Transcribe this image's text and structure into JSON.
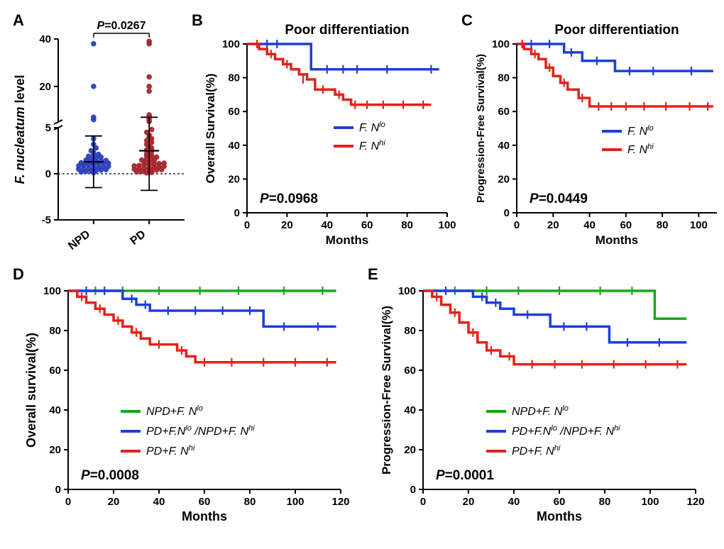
{
  "layout": {
    "row1_height": 360,
    "row2_height": 394
  },
  "colors": {
    "blue": "#1e3fd6",
    "red": "#e2231a",
    "darkred": "#a7252a",
    "darkblue": "#2b3fbb",
    "green": "#1aa61a",
    "black": "#000000",
    "bg": "#ffffff"
  },
  "panelA": {
    "label": "A",
    "ylabel": "F. nucleatum level",
    "pvalue": "P=0.0267",
    "y_ticks": [
      -5,
      0,
      5,
      20,
      40
    ],
    "y_tick_labels": [
      "-5",
      "0",
      "5",
      "20",
      "40"
    ],
    "categories": [
      "NPD",
      "PD"
    ],
    "scatter": {
      "NPD": [
        0.1,
        0.2,
        0.25,
        0.3,
        0.35,
        0.4,
        0.45,
        0.5,
        0.55,
        0.6,
        0.65,
        0.7,
        0.75,
        0.8,
        0.85,
        0.9,
        0.95,
        1.0,
        1.05,
        1.1,
        1.15,
        1.2,
        1.25,
        1.3,
        1.35,
        1.4,
        1.45,
        1.5,
        1.6,
        1.7,
        1.8,
        1.9,
        2.0,
        2.1,
        2.3,
        2.5,
        2.8,
        3.2,
        3.8,
        6.0,
        7.0,
        20,
        38
      ],
      "PD": [
        0.1,
        0.15,
        0.2,
        0.25,
        0.3,
        0.35,
        0.4,
        0.45,
        0.5,
        0.55,
        0.6,
        0.65,
        0.7,
        0.75,
        0.8,
        0.85,
        0.9,
        0.95,
        1.0,
        1.05,
        1.1,
        1.15,
        1.2,
        1.3,
        1.4,
        1.5,
        1.6,
        1.7,
        1.8,
        1.9,
        2.0,
        2.2,
        2.4,
        2.6,
        2.8,
        3.0,
        3.2,
        3.4,
        3.6,
        3.8,
        4.0,
        4.2,
        4.5,
        4.8,
        5.2,
        6.0,
        7.0,
        8.0,
        18,
        20,
        24,
        38,
        39
      ]
    },
    "npd_color": "#2b3fbb",
    "pd_color": "#a7252a",
    "error": {
      "NPD": {
        "mean": 1.3,
        "low": -1.5,
        "high": 4.1
      },
      "PD": {
        "mean": 2.5,
        "low": -1.8,
        "high": 7.0
      }
    }
  },
  "panelB": {
    "label": "B",
    "title": "Poor  differentiation",
    "ylabel": "Overall Survival(%)",
    "xlabel": "Months",
    "pvalue": "P=0.0968",
    "ylim": [
      0,
      100
    ],
    "ytick_step": 20,
    "xlim": [
      0,
      100
    ],
    "xtick_step": 20,
    "legend": [
      {
        "label_prefix": "F. N",
        "label_sup": "lo",
        "color": "#1e3fd6"
      },
      {
        "label_prefix": "F. N",
        "label_sup": "hi",
        "color": "#e2231a"
      }
    ],
    "series": [
      {
        "color": "#1e3fd6",
        "steps": [
          [
            0,
            100
          ],
          [
            30,
            100
          ],
          [
            32,
            85
          ],
          [
            96,
            85
          ]
        ],
        "censors": [
          [
            10,
            100
          ],
          [
            15,
            100
          ],
          [
            40,
            85
          ],
          [
            48,
            85
          ],
          [
            55,
            85
          ],
          [
            70,
            85
          ],
          [
            92,
            85
          ]
        ]
      },
      {
        "color": "#e2231a",
        "steps": [
          [
            0,
            100
          ],
          [
            6,
            97
          ],
          [
            10,
            94
          ],
          [
            14,
            91
          ],
          [
            18,
            88
          ],
          [
            22,
            85
          ],
          [
            26,
            82
          ],
          [
            30,
            79
          ],
          [
            34,
            73
          ],
          [
            40,
            73
          ],
          [
            44,
            70
          ],
          [
            48,
            67
          ],
          [
            52,
            64
          ],
          [
            92,
            64
          ]
        ],
        "censors": [
          [
            5,
            100
          ],
          [
            12,
            94
          ],
          [
            20,
            88
          ],
          [
            28,
            79
          ],
          [
            38,
            73
          ],
          [
            46,
            70
          ],
          [
            54,
            64
          ],
          [
            60,
            64
          ],
          [
            68,
            64
          ],
          [
            78,
            64
          ],
          [
            88,
            64
          ]
        ]
      }
    ]
  },
  "panelC": {
    "label": "C",
    "title": "Poor  differentiation",
    "ylabel": "Progression-Free Survival(%)",
    "xlabel": "Months",
    "pvalue": "P=0.0449",
    "ylim": [
      0,
      100
    ],
    "ytick_step": 20,
    "xlim": [
      0,
      110
    ],
    "xtick_step": 20,
    "legend": [
      {
        "label_prefix": "F. N",
        "label_sup": "lo",
        "color": "#1e3fd6"
      },
      {
        "label_prefix": "F. N",
        "label_sup": "hi",
        "color": "#e2231a"
      }
    ],
    "series": [
      {
        "color": "#1e3fd6",
        "steps": [
          [
            0,
            100
          ],
          [
            24,
            100
          ],
          [
            26,
            95
          ],
          [
            34,
            95
          ],
          [
            36,
            90
          ],
          [
            52,
            90
          ],
          [
            54,
            84
          ],
          [
            108,
            84
          ]
        ],
        "censors": [
          [
            8,
            100
          ],
          [
            18,
            100
          ],
          [
            30,
            95
          ],
          [
            44,
            90
          ],
          [
            62,
            84
          ],
          [
            75,
            84
          ],
          [
            96,
            84
          ]
        ]
      },
      {
        "color": "#e2231a",
        "steps": [
          [
            0,
            100
          ],
          [
            4,
            97
          ],
          [
            8,
            94
          ],
          [
            12,
            91
          ],
          [
            16,
            86
          ],
          [
            20,
            81
          ],
          [
            24,
            77
          ],
          [
            28,
            73
          ],
          [
            34,
            68
          ],
          [
            40,
            63
          ],
          [
            108,
            63
          ]
        ],
        "censors": [
          [
            3,
            100
          ],
          [
            10,
            94
          ],
          [
            18,
            86
          ],
          [
            26,
            77
          ],
          [
            36,
            68
          ],
          [
            45,
            63
          ],
          [
            52,
            63
          ],
          [
            60,
            63
          ],
          [
            70,
            63
          ],
          [
            82,
            63
          ],
          [
            95,
            63
          ],
          [
            105,
            63
          ]
        ]
      }
    ]
  },
  "panelD": {
    "label": "D",
    "ylabel": "Overall survival(%)",
    "xlabel": "Months",
    "pvalue": "P=0.0008",
    "ylim": [
      0,
      100
    ],
    "ytick_step": 20,
    "xlim": [
      0,
      120
    ],
    "xtick_step": 20,
    "legend": [
      {
        "html": "NPD+F. N<sup>lo</sup>",
        "color": "#1aa61a"
      },
      {
        "html": "PD+F.N<sup>lo</sup> /NPD+F. N<sup>hi</sup>",
        "color": "#1e3fd6"
      },
      {
        "html": "PD+F. N<sup>hi</sup>",
        "color": "#e2231a"
      }
    ],
    "series": [
      {
        "color": "#1aa61a",
        "steps": [
          [
            0,
            100
          ],
          [
            118,
            100
          ]
        ],
        "censors": [
          [
            12,
            100
          ],
          [
            24,
            100
          ],
          [
            40,
            100
          ],
          [
            58,
            100
          ],
          [
            75,
            100
          ],
          [
            95,
            100
          ],
          [
            112,
            100
          ]
        ]
      },
      {
        "color": "#1e3fd6",
        "steps": [
          [
            0,
            100
          ],
          [
            22,
            100
          ],
          [
            24,
            96
          ],
          [
            30,
            93
          ],
          [
            36,
            90
          ],
          [
            84,
            90
          ],
          [
            86,
            82
          ],
          [
            118,
            82
          ]
        ],
        "censors": [
          [
            8,
            100
          ],
          [
            16,
            100
          ],
          [
            28,
            96
          ],
          [
            34,
            93
          ],
          [
            44,
            90
          ],
          [
            56,
            90
          ],
          [
            68,
            90
          ],
          [
            80,
            90
          ],
          [
            95,
            82
          ],
          [
            110,
            82
          ]
        ]
      },
      {
        "color": "#e2231a",
        "steps": [
          [
            0,
            100
          ],
          [
            4,
            97
          ],
          [
            8,
            94
          ],
          [
            12,
            91
          ],
          [
            16,
            88
          ],
          [
            20,
            85
          ],
          [
            24,
            82
          ],
          [
            28,
            79
          ],
          [
            32,
            76
          ],
          [
            36,
            73
          ],
          [
            44,
            73
          ],
          [
            48,
            70
          ],
          [
            52,
            67
          ],
          [
            56,
            64
          ],
          [
            118,
            64
          ]
        ],
        "censors": [
          [
            6,
            97
          ],
          [
            14,
            91
          ],
          [
            22,
            85
          ],
          [
            30,
            79
          ],
          [
            40,
            73
          ],
          [
            50,
            70
          ],
          [
            60,
            64
          ],
          [
            72,
            64
          ],
          [
            86,
            64
          ],
          [
            100,
            64
          ],
          [
            114,
            64
          ]
        ]
      }
    ]
  },
  "panelE": {
    "label": "E",
    "ylabel": "Progression-Free Survival(%)",
    "xlabel": "Months",
    "pvalue": "P=0.0001",
    "ylim": [
      0,
      100
    ],
    "ytick_step": 20,
    "xlim": [
      0,
      120
    ],
    "xtick_step": 20,
    "legend": [
      {
        "html": "NPD+F. N<sup>lo</sup>",
        "color": "#1aa61a"
      },
      {
        "html": "PD+F.N<sup>lo</sup> /NPD+F. N<sup>hi</sup>",
        "color": "#1e3fd6"
      },
      {
        "html": "PD+F. N<sup>hi</sup>",
        "color": "#e2231a"
      }
    ],
    "series": [
      {
        "color": "#1aa61a",
        "steps": [
          [
            0,
            100
          ],
          [
            100,
            100
          ],
          [
            102,
            86
          ],
          [
            116,
            86
          ]
        ],
        "censors": [
          [
            14,
            100
          ],
          [
            28,
            100
          ],
          [
            42,
            100
          ],
          [
            60,
            100
          ],
          [
            78,
            100
          ],
          [
            92,
            100
          ]
        ]
      },
      {
        "color": "#1e3fd6",
        "steps": [
          [
            0,
            100
          ],
          [
            20,
            100
          ],
          [
            22,
            97
          ],
          [
            28,
            94
          ],
          [
            34,
            91
          ],
          [
            40,
            88
          ],
          [
            54,
            88
          ],
          [
            56,
            82
          ],
          [
            80,
            82
          ],
          [
            82,
            74
          ],
          [
            116,
            74
          ]
        ],
        "censors": [
          [
            10,
            100
          ],
          [
            26,
            97
          ],
          [
            32,
            94
          ],
          [
            46,
            88
          ],
          [
            62,
            82
          ],
          [
            72,
            82
          ],
          [
            90,
            74
          ],
          [
            104,
            74
          ]
        ]
      },
      {
        "color": "#e2231a",
        "steps": [
          [
            0,
            100
          ],
          [
            4,
            97
          ],
          [
            8,
            93
          ],
          [
            12,
            89
          ],
          [
            16,
            84
          ],
          [
            20,
            79
          ],
          [
            24,
            74
          ],
          [
            28,
            70
          ],
          [
            34,
            67
          ],
          [
            40,
            63
          ],
          [
            116,
            63
          ]
        ],
        "censors": [
          [
            6,
            97
          ],
          [
            14,
            89
          ],
          [
            22,
            79
          ],
          [
            30,
            70
          ],
          [
            38,
            67
          ],
          [
            48,
            63
          ],
          [
            58,
            63
          ],
          [
            70,
            63
          ],
          [
            84,
            63
          ],
          [
            98,
            63
          ],
          [
            112,
            63
          ]
        ]
      }
    ]
  }
}
